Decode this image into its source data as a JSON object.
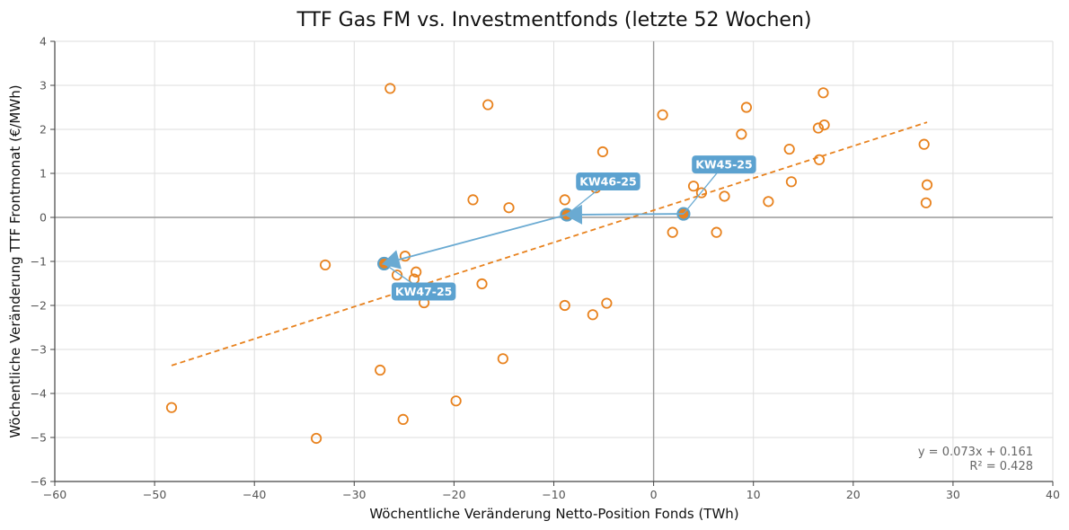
{
  "chart_data": {
    "type": "scatter",
    "title": "TTF Gas FM vs. Investmentfonds (letzte 52 Wochen)",
    "xlabel": "Wöchentliche Veränderung Netto-Position Fonds (TWh)",
    "ylabel": "Wöchentliche Veränderung TTF Frontmonat (€/MWh)",
    "xlim": [
      -60,
      40
    ],
    "ylim": [
      -6,
      4
    ],
    "xticks": [
      -60,
      -50,
      -40,
      -30,
      -20,
      -10,
      0,
      10,
      20,
      30,
      40
    ],
    "yticks": [
      -6,
      -5,
      -4,
      -3,
      -2,
      -1,
      0,
      1,
      2,
      3,
      4
    ],
    "grid": true,
    "colors": {
      "points": "#e8821e",
      "highlight": "#5ca2d0"
    },
    "points": [
      [
        -48.3,
        -4.32
      ],
      [
        -33.8,
        -5.02
      ],
      [
        -32.9,
        -1.08
      ],
      [
        -27.4,
        -3.47
      ],
      [
        -26.4,
        2.93
      ],
      [
        -25.7,
        -1.31
      ],
      [
        -25.1,
        -4.59
      ],
      [
        -24.9,
        -0.88
      ],
      [
        -24.0,
        -1.4
      ],
      [
        -23.8,
        -1.24
      ],
      [
        -23.0,
        -1.94
      ],
      [
        -19.8,
        -4.17
      ],
      [
        -18.1,
        0.4
      ],
      [
        -17.2,
        -1.51
      ],
      [
        -16.6,
        2.56
      ],
      [
        -15.1,
        -3.21
      ],
      [
        -14.5,
        0.22
      ],
      [
        -8.9,
        0.4
      ],
      [
        -8.9,
        -2.0
      ],
      [
        -6.1,
        -2.21
      ],
      [
        -5.8,
        0.67
      ],
      [
        -5.1,
        1.49
      ],
      [
        -4.7,
        -1.95
      ],
      [
        0.9,
        2.33
      ],
      [
        1.9,
        -0.34
      ],
      [
        4.0,
        0.71
      ],
      [
        4.8,
        0.56
      ],
      [
        6.3,
        -0.34
      ],
      [
        7.1,
        0.48
      ],
      [
        8.8,
        1.89
      ],
      [
        9.3,
        2.5
      ],
      [
        11.5,
        0.36
      ],
      [
        13.6,
        1.55
      ],
      [
        13.8,
        0.81
      ],
      [
        16.5,
        2.03
      ],
      [
        16.6,
        1.31
      ],
      [
        17.0,
        2.83
      ],
      [
        17.1,
        2.1
      ],
      [
        27.1,
        1.66
      ],
      [
        27.3,
        0.33
      ],
      [
        27.4,
        0.74
      ]
    ],
    "highlights": [
      {
        "label": "KW45-25",
        "x": 3.0,
        "y": 0.08
      },
      {
        "label": "KW46-25",
        "x": -8.7,
        "y": 0.06
      },
      {
        "label": "KW47-25",
        "x": -27.0,
        "y": -1.05
      }
    ],
    "trendline": {
      "slope": 0.073,
      "intercept": 0.161,
      "x_range": [
        -48.3,
        27.4
      ]
    },
    "stats": {
      "equation": "y = 0.073x + 0.161",
      "r2": "R² = 0.428"
    }
  }
}
